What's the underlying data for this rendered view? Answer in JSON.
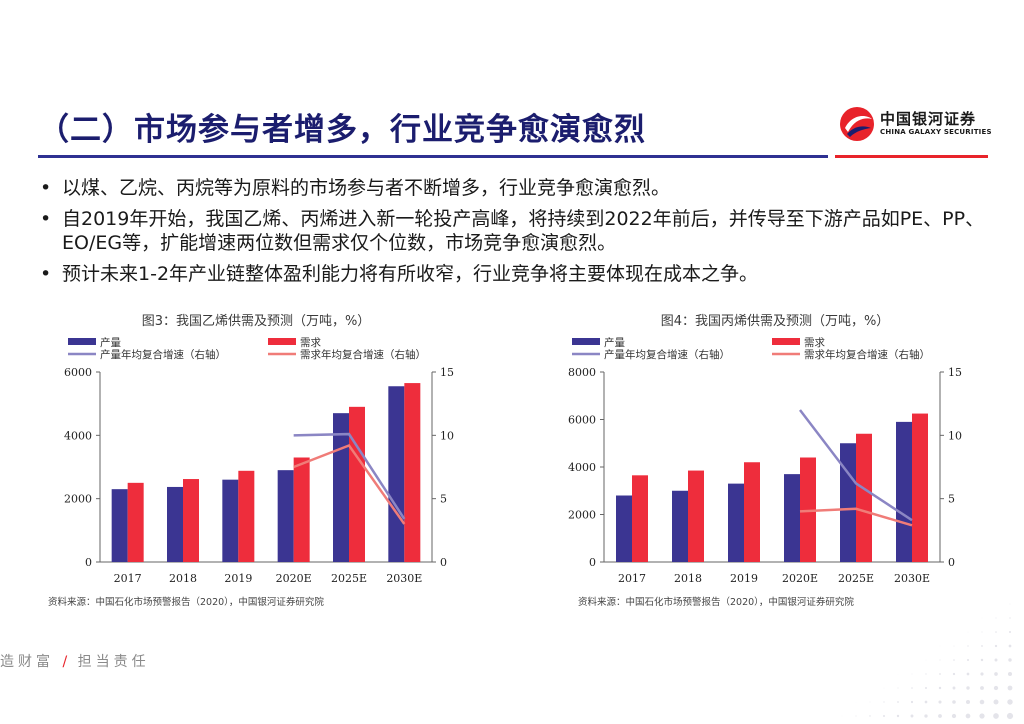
{
  "slide": {
    "title": "（二）市场参与者增多，行业竞争愈演愈烈",
    "logo_cn": "中国银河证券",
    "logo_en": "CHINA GALAXY SECURITIES",
    "bullets": [
      "以煤、乙烷、丙烷等为原料的市场参与者不断增多，行业竞争愈演愈烈。",
      "自2019年开始，我国乙烯、丙烯进入新一轮投产高峰，将持续到2022年前后，并传导至下游产品如PE、PP、EO/EG等，扩能增速两位数但需求仅个位数，市场竞争愈演愈烈。",
      "预计未来1-2年产业链整体盈利能力将有所收窄，行业竞争将主要体现在成本之争。"
    ],
    "slogan_left": "造财富",
    "slogan_sep": "/",
    "slogan_right": "担当责任",
    "colors": {
      "navy": "#1b1d6e",
      "blue_rule": "#2e3192",
      "red": "#e8232a"
    }
  },
  "chart_data": [
    {
      "type": "bar",
      "title": "图3：我国乙烯供需及预测（万吨，%）",
      "source": "资料来源：中国石化市场预警报告（2020），中国银河证券研究院",
      "categories": [
        "2017",
        "2018",
        "2019",
        "2020E",
        "2025E",
        "2030E"
      ],
      "ylim": [
        0,
        6000
      ],
      "yticks": [
        "0",
        "2000",
        "4000",
        "6000"
      ],
      "y2lim": [
        0,
        15
      ],
      "y2ticks": [
        "0",
        "5",
        "10",
        "15"
      ],
      "series": [
        {
          "name": "产量",
          "kind": "bar",
          "axis": "left",
          "color": "#3b3592",
          "values": [
            2300,
            2370,
            2600,
            2900,
            4700,
            5550
          ]
        },
        {
          "name": "需求",
          "kind": "bar",
          "axis": "left",
          "color": "#ee2d3c",
          "values": [
            2500,
            2620,
            2880,
            3300,
            4900,
            5650
          ]
        },
        {
          "name": "产量年均复合增速（右轴）",
          "kind": "line",
          "axis": "right",
          "color": "#8b86c4",
          "values": [
            null,
            null,
            null,
            10.0,
            10.1,
            3.4
          ]
        },
        {
          "name": "需求年均复合增速（右轴）",
          "kind": "line",
          "axis": "right",
          "color": "#f07c78",
          "values": [
            null,
            null,
            null,
            7.5,
            9.2,
            3.0
          ]
        }
      ]
    },
    {
      "type": "bar",
      "title": "图4：我国丙烯供需及预测（万吨，%）",
      "source": "资料来源：中国石化市场预警报告（2020），中国银河证券研究院",
      "categories": [
        "2017",
        "2018",
        "2019",
        "2020E",
        "2025E",
        "2030E"
      ],
      "ylim": [
        0,
        8000
      ],
      "yticks": [
        "0",
        "2000",
        "4000",
        "6000",
        "8000"
      ],
      "y2lim": [
        0,
        15
      ],
      "y2ticks": [
        "0",
        "5",
        "10",
        "15"
      ],
      "series": [
        {
          "name": "产量",
          "kind": "bar",
          "axis": "left",
          "color": "#3b3592",
          "values": [
            2800,
            3000,
            3300,
            3700,
            5000,
            5900
          ]
        },
        {
          "name": "需求",
          "kind": "bar",
          "axis": "left",
          "color": "#ee2d3c",
          "values": [
            3650,
            3850,
            4200,
            4400,
            5400,
            6250
          ]
        },
        {
          "name": "产量年均复合增速（右轴）",
          "kind": "line",
          "axis": "right",
          "color": "#8b86c4",
          "values": [
            null,
            null,
            null,
            12.0,
            6.2,
            3.3
          ]
        },
        {
          "name": "需求年均复合增速（右轴）",
          "kind": "line",
          "axis": "right",
          "color": "#f07c78",
          "values": [
            null,
            null,
            null,
            4.0,
            4.2,
            2.9
          ]
        }
      ]
    }
  ]
}
